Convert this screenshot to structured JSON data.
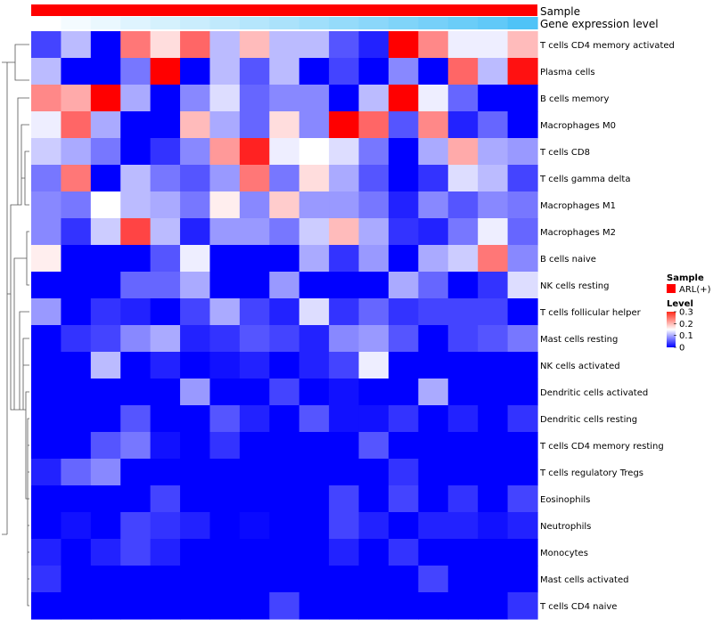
{
  "chart_data": {
    "type": "heatmap",
    "annotation_tracks": [
      "Sample",
      "Gene expression level"
    ],
    "legend": {
      "sample_title": "Sample",
      "sample_items": [
        "ARL(+)"
      ],
      "sample_color": "#ff0000",
      "level_title": "Level",
      "level_ticks": [
        "0.3",
        "0.2",
        "0.1",
        "0"
      ],
      "level_tick_values": [
        0.3,
        0.2,
        0.1,
        0
      ]
    },
    "color_scale": {
      "min": 0,
      "max": 0.3,
      "low": "#0000ff",
      "mid": "#ffffff",
      "high": "#ff0000"
    },
    "gene_expression_gradient": {
      "start": "#ffffff",
      "end": "#4fc3f7"
    },
    "row_labels": [
      "T cells CD4 memory activated",
      "Plasma cells",
      "B cells memory",
      "Macrophages M0",
      "T cells CD8",
      "T cells gamma delta",
      "Macrophages M1",
      "Macrophages M2",
      "B cells naive",
      "NK cells resting",
      "T cells follicular helper",
      "Mast cells resting",
      "NK cells activated",
      "Dendritic cells activated",
      "Dendritic cells resting",
      "T cells CD4 memory resting",
      "T cells regulatory  Tregs",
      "Eosinophils",
      "Neutrophils",
      "Monocytes",
      "Mast cells activated",
      "T cells CD4 naive"
    ],
    "values": [
      [
        0.04,
        0.11,
        0,
        0.23,
        0.17,
        0.24,
        0.11,
        0.19,
        0.11,
        0.11,
        0.05,
        0.02,
        0.3,
        0.22,
        0.14,
        0.14,
        0.19
      ],
      [
        0.11,
        0,
        0,
        0.07,
        0.3,
        0,
        0.11,
        0.05,
        0.11,
        0,
        0.04,
        0,
        0.08,
        0,
        0.24,
        0.11,
        0.29
      ],
      [
        0.22,
        0.2,
        0.3,
        0.1,
        0,
        0.08,
        0.13,
        0.06,
        0.08,
        0.08,
        0,
        0.11,
        0.3,
        0.14,
        0.06,
        0,
        0
      ],
      [
        0.14,
        0.24,
        0.1,
        0,
        0,
        0.19,
        0.1,
        0.06,
        0.17,
        0.08,
        0.3,
        0.24,
        0.05,
        0.22,
        0.02,
        0.06,
        0
      ],
      [
        0.12,
        0.1,
        0.07,
        0,
        0.03,
        0.08,
        0.21,
        0.28,
        0.14,
        0.15,
        0.13,
        0.07,
        0,
        0.1,
        0.2,
        0.1,
        0.09
      ],
      [
        0.07,
        0.23,
        0,
        0.11,
        0.07,
        0.05,
        0.09,
        0.23,
        0.07,
        0.17,
        0.1,
        0.05,
        0,
        0.03,
        0.13,
        0.11,
        0.04
      ],
      [
        0.08,
        0.07,
        0.15,
        0.11,
        0.1,
        0.07,
        0.16,
        0.08,
        0.18,
        0.09,
        0.09,
        0.07,
        0.02,
        0.08,
        0.05,
        0.08,
        0.07
      ],
      [
        0.08,
        0.03,
        0.12,
        0.26,
        0.11,
        0.02,
        0.09,
        0.09,
        0.07,
        0.12,
        0.19,
        0.1,
        0.03,
        0.02,
        0.07,
        0.14,
        0.06
      ],
      [
        0.16,
        0,
        0,
        0,
        0.05,
        0.14,
        0,
        0,
        0,
        0.1,
        0.03,
        0.09,
        0,
        0.1,
        0.12,
        0.23,
        0.08
      ],
      [
        0,
        0,
        0,
        0.06,
        0.06,
        0.1,
        0,
        0,
        0.09,
        0,
        0,
        0,
        0.1,
        0.06,
        0,
        0.03,
        0.13
      ],
      [
        0.09,
        0,
        0.03,
        0.02,
        0,
        0.04,
        0.1,
        0.04,
        0.02,
        0.13,
        0.03,
        0.06,
        0.03,
        0.04,
        0.04,
        0.04,
        0
      ],
      [
        0,
        0.03,
        0.04,
        0.08,
        0.1,
        0.02,
        0.03,
        0.05,
        0.04,
        0.02,
        0.08,
        0.09,
        0.05,
        0,
        0.04,
        0.05,
        0.07
      ],
      [
        0,
        0,
        0.11,
        0,
        0.02,
        0,
        0.01,
        0.02,
        0,
        0.02,
        0.04,
        0.14,
        0,
        0,
        0,
        0,
        0
      ],
      [
        0,
        0,
        0,
        0,
        0,
        0.09,
        0,
        0,
        0.04,
        0,
        0.01,
        0,
        0,
        0.1,
        0,
        0,
        0
      ],
      [
        0,
        0,
        0,
        0.05,
        0,
        0,
        0.05,
        0.02,
        0,
        0.05,
        0.01,
        0.01,
        0.03,
        0,
        0.02,
        0,
        0.03
      ],
      [
        0,
        0,
        0.05,
        0.07,
        0.01,
        0,
        0.03,
        0,
        0,
        0,
        0,
        0.05,
        0,
        0,
        0,
        0,
        0
      ],
      [
        0.02,
        0.06,
        0.08,
        0,
        0,
        0,
        0,
        0,
        0,
        0,
        0,
        0,
        0.03,
        0,
        0,
        0,
        0
      ],
      [
        0,
        0,
        0,
        0,
        0.04,
        0,
        0,
        0,
        0,
        0,
        0.04,
        0,
        0.04,
        0,
        0.03,
        0,
        0.04
      ],
      [
        0,
        0.01,
        0,
        0.04,
        0.03,
        0.02,
        0,
        0.005,
        0,
        0,
        0.04,
        0.02,
        0,
        0.02,
        0.02,
        0.01,
        0.02
      ],
      [
        0.02,
        0,
        0.02,
        0.04,
        0.02,
        0,
        0,
        0,
        0,
        0,
        0.02,
        0,
        0.03,
        0,
        0,
        0,
        0
      ],
      [
        0.03,
        0,
        0,
        0,
        0,
        0,
        0,
        0,
        0,
        0,
        0,
        0,
        0,
        0.04,
        0,
        0,
        0
      ],
      [
        0,
        0,
        0,
        0,
        0,
        0,
        0,
        0,
        0.04,
        0,
        0,
        0,
        0,
        0,
        0,
        0,
        0.03
      ]
    ],
    "gene_expression_values": [
      0,
      0.06,
      0.12,
      0.18,
      0.24,
      0.3,
      0.36,
      0.42,
      0.48,
      0.54,
      0.6,
      0.66,
      0.72,
      0.78,
      0.84,
      0.9,
      1
    ]
  }
}
